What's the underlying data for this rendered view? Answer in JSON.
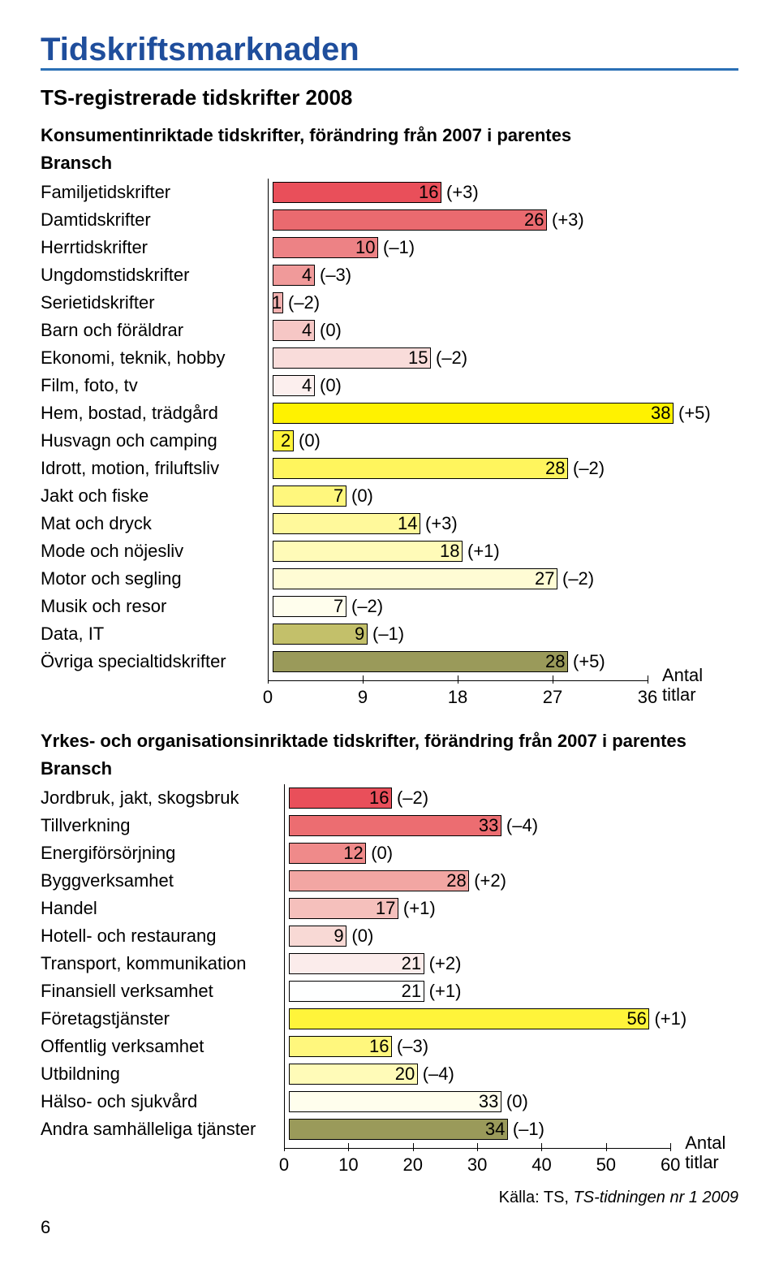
{
  "title": "Tidskriftsmarknaden",
  "title_color": "#1f4e9c",
  "title_fontsize": 40,
  "underline_color": "#2a6fb5",
  "sub_title": "TS-registrerade tidskrifter 2008",
  "sub_title_fontsize": 26,
  "section1_title": "Konsumentinriktade tidskrifter, förändring från 2007 i parentes",
  "section2_title": "Yrkes- och organisationsinriktade tidskrifter, förändring från 2007 i parentes",
  "bransch_label": "Bransch",
  "label_fontsize": 22,
  "value_fontsize": 22,
  "axis_label_antal": "Antal",
  "axis_label_titlar": "titlar",
  "source_prefix": "Källa: TS, ",
  "source_italic": "TS-tidningen nr 1 2009",
  "page_number": "6",
  "chart1": {
    "max": 40,
    "ticks": [
      0,
      9,
      18,
      27,
      36
    ],
    "bar_area_width": 520,
    "rows": [
      {
        "label": "Familjetidskrifter",
        "value": 16,
        "change": "(+3)",
        "color": "#e94f5a"
      },
      {
        "label": "Damtidskrifter",
        "value": 26,
        "change": "(+3)",
        "color": "#ea6a6f"
      },
      {
        "label": "Herrtidskrifter",
        "value": 10,
        "change": "(–1)",
        "color": "#ed8285"
      },
      {
        "label": "Ungdomstidskrifter",
        "value": 4,
        "change": "(–3)",
        "color": "#f09a9a"
      },
      {
        "label": "Serietidskrifter",
        "value": 1,
        "change": "(–2)",
        "color": "#f3b1b0"
      },
      {
        "label": "Barn och föräldrar",
        "value": 4,
        "change": "(0)",
        "color": "#f6c7c5"
      },
      {
        "label": "Ekonomi, teknik, hobby",
        "value": 15,
        "change": "(–2)",
        "color": "#f9dcda"
      },
      {
        "label": "Film, foto, tv",
        "value": 4,
        "change": "(0)",
        "color": "#fcefee"
      },
      {
        "label": "Hem, bostad, trädgård",
        "value": 38,
        "change": "(+5)",
        "color": "#fff200"
      },
      {
        "label": "Husvagn och camping",
        "value": 2,
        "change": "(0)",
        "color": "#fff43a"
      },
      {
        "label": "Idrott, motion, friluftsliv",
        "value": 28,
        "change": "(–2)",
        "color": "#fff55d"
      },
      {
        "label": "Jakt och fiske",
        "value": 7,
        "change": "(0)",
        "color": "#fff77d"
      },
      {
        "label": "Mat och dryck",
        "value": 14,
        "change": "(+3)",
        "color": "#fff99b"
      },
      {
        "label": "Mode och nöjesliv",
        "value": 18,
        "change": "(+1)",
        "color": "#fffbb8"
      },
      {
        "label": "Motor och segling",
        "value": 27,
        "change": "(–2)",
        "color": "#fffcd4"
      },
      {
        "label": "Musik och resor",
        "value": 7,
        "change": "(–2)",
        "color": "#fffeed"
      },
      {
        "label": "Data, IT",
        "value": 9,
        "change": "(–1)",
        "color": "#c3c06a"
      },
      {
        "label": "Övriga specialtidskrifter",
        "value": 28,
        "change": "(+5)",
        "color": "#9a9a5a"
      }
    ]
  },
  "chart2": {
    "max": 63,
    "ticks": [
      0,
      10,
      20,
      30,
      40,
      50,
      60
    ],
    "bar_area_width": 500,
    "rows": [
      {
        "label": "Jordbruk, jakt, skogsbruk",
        "value": 16,
        "change": "(–2)",
        "color": "#e94f5a"
      },
      {
        "label": "Tillverkning",
        "value": 33,
        "change": "(–4)",
        "color": "#ec6d71"
      },
      {
        "label": "Energiförsörjning",
        "value": 12,
        "change": "(0)",
        "color": "#ef8a8a"
      },
      {
        "label": "Byggverksamhet",
        "value": 28,
        "change": "(+2)",
        "color": "#f2a6a3"
      },
      {
        "label": "Handel",
        "value": 17,
        "change": "(+1)",
        "color": "#f5c0bc"
      },
      {
        "label": "Hotell- och restaurang",
        "value": 9,
        "change": "(0)",
        "color": "#f8d9d5"
      },
      {
        "label": "Transport, kommunikation",
        "value": 21,
        "change": "(+2)",
        "color": "#fbeceb"
      },
      {
        "label": "Finansiell verksamhet",
        "value": 21,
        "change": "(+1)",
        "color": "#feffff"
      },
      {
        "label": "Företagstjänster",
        "value": 56,
        "change": "(+1)",
        "color": "#fff43a"
      },
      {
        "label": "Offentlig verksamhet",
        "value": 16,
        "change": "(–3)",
        "color": "#fff77d"
      },
      {
        "label": "Utbildning",
        "value": 20,
        "change": "(–4)",
        "color": "#fffbb8"
      },
      {
        "label": "Hälso- och sjukvård",
        "value": 33,
        "change": "(0)",
        "color": "#fffeed"
      },
      {
        "label": "Andra samhälleliga tjänster",
        "value": 34,
        "change": "(–1)",
        "color": "#9a9a5a"
      }
    ]
  }
}
